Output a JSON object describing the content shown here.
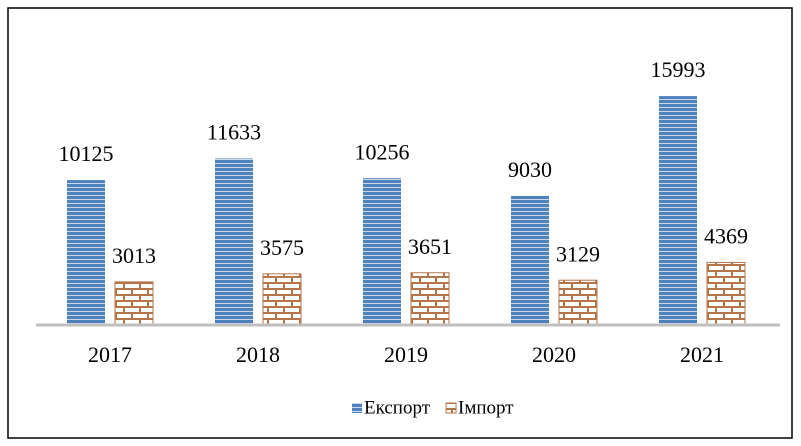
{
  "chart_data": {
    "type": "bar",
    "categories": [
      "2017",
      "2018",
      "2019",
      "2020",
      "2021"
    ],
    "series": [
      {
        "name": "Експорт",
        "color": "#4f81bd",
        "values": [
          10125,
          11633,
          10256,
          9030,
          15993
        ]
      },
      {
        "name": "Імпорт",
        "color": "#b5754a",
        "values": [
          3013,
          3575,
          3651,
          3129,
          4369
        ]
      }
    ],
    "ylim": [
      0,
      16000
    ],
    "legend": "bottom"
  }
}
